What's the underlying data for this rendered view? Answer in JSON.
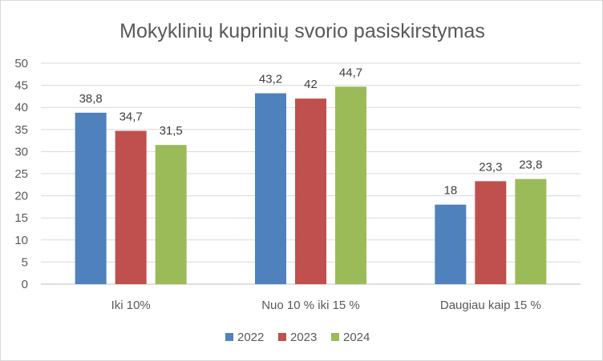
{
  "chart_data": {
    "type": "bar",
    "title": "Mokyklinių kuprinių svorio pasiskirstymas",
    "xlabel": "",
    "ylabel": "",
    "categories": [
      "Iki 10%",
      "Nuo 10 % iki 15 %",
      "Daugiau kaip 15 %"
    ],
    "series": [
      {
        "name": "2022",
        "color": "#4f81bd",
        "values": [
          38.8,
          43.2,
          18
        ],
        "labels": [
          "38,8",
          "43,2",
          "18"
        ]
      },
      {
        "name": "2023",
        "color": "#c0504d",
        "values": [
          34.7,
          42,
          23.3
        ],
        "labels": [
          "34,7",
          "42",
          "23,3"
        ]
      },
      {
        "name": "2024",
        "color": "#9bbb59",
        "values": [
          31.5,
          44.7,
          23.8
        ],
        "labels": [
          "31,5",
          "44,7",
          "23,8"
        ]
      }
    ],
    "ylim": [
      0,
      50
    ],
    "yticks": [
      0,
      5,
      10,
      15,
      20,
      25,
      30,
      35,
      40,
      45,
      50
    ],
    "grid": true,
    "legend": "bottom"
  }
}
